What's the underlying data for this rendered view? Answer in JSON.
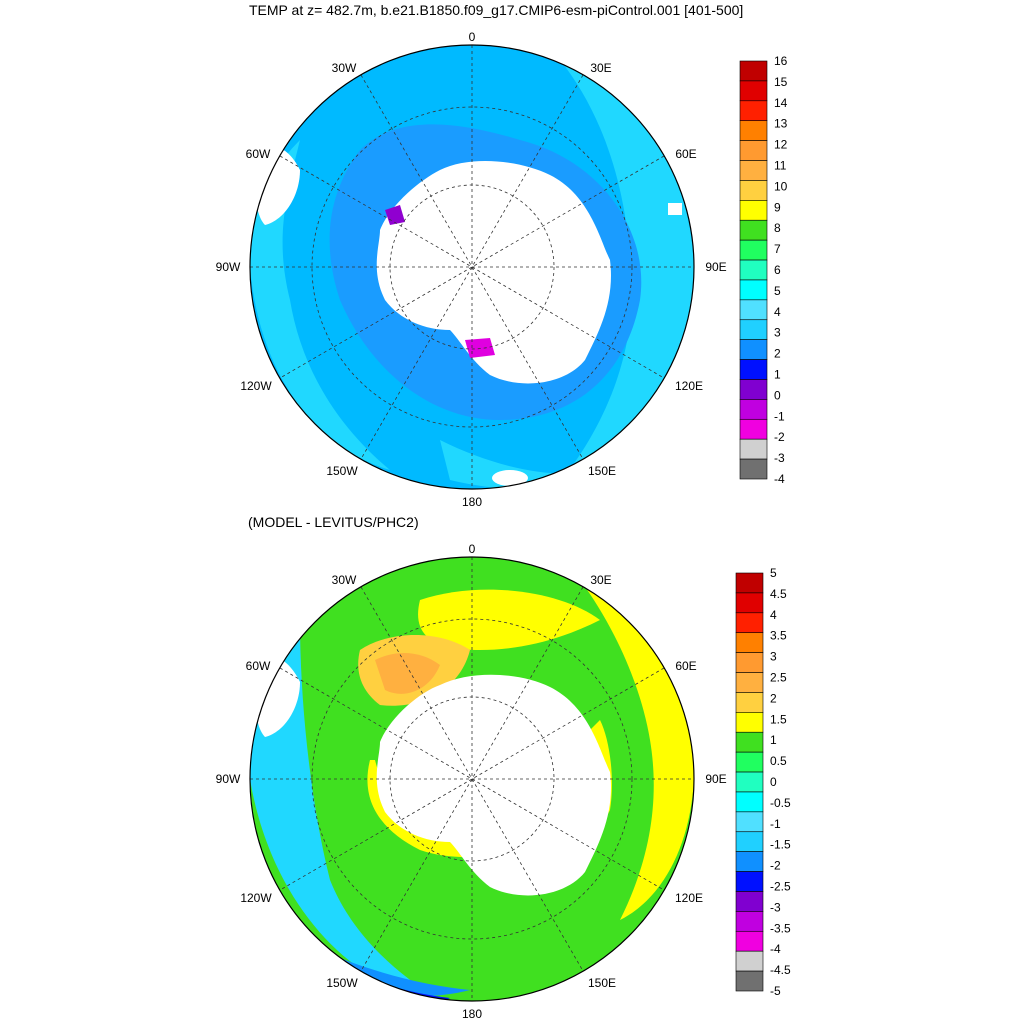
{
  "panel_top": {
    "title": "TEMP at z= 482.7m, b.e21.B1850.f09_g17.CMIP6-esm-piControl.001 [401-500]",
    "lon_labels": {
      "n": "0",
      "nne": "30E",
      "ene": "60E",
      "e": "90E",
      "ese": "120E",
      "sse": "150E",
      "s": "180",
      "ssw": "150W",
      "wsw": "120W",
      "w": "90W",
      "wnw": "60W",
      "nnw": "30W"
    },
    "colorbar": {
      "labels": [
        "16",
        "15",
        "14",
        "13",
        "12",
        "11",
        "10",
        "9",
        "8",
        "7",
        "6",
        "5",
        "4",
        "3",
        "2",
        "1",
        "0",
        "-1",
        "-2",
        "-3",
        "-4"
      ],
      "colors": [
        "#c00000",
        "#e00000",
        "#ff2000",
        "#ff8000",
        "#ff9a30",
        "#ffb040",
        "#ffd040",
        "#ffff00",
        "#40e020",
        "#20ff60",
        "#20ffc0",
        "#00ffff",
        "#50e0ff",
        "#20d0ff",
        "#1090ff",
        "#0010ff",
        "#8000d0",
        "#c000e0",
        "#f000e0",
        "#d0d0d0",
        "#707070"
      ]
    }
  },
  "panel_bottom": {
    "title": "(MODEL - LEVITUS/PHC2)",
    "lon_labels": {
      "n": "0",
      "nne": "30E",
      "ene": "60E",
      "e": "90E",
      "ese": "120E",
      "sse": "150E",
      "s": "180",
      "ssw": "150W",
      "wsw": "120W",
      "w": "90W",
      "wnw": "60W",
      "nnw": "30W"
    },
    "colorbar": {
      "labels": [
        "5",
        "4.5",
        "4",
        "3.5",
        "3",
        "2.5",
        "2",
        "1.5",
        "1",
        "0.5",
        "0",
        "-0.5",
        "-1",
        "-1.5",
        "-2",
        "-2.5",
        "-3",
        "-3.5",
        "-4",
        "-4.5",
        "-5"
      ],
      "colors": [
        "#c00000",
        "#e00000",
        "#ff2000",
        "#ff8000",
        "#ff9a30",
        "#ffb040",
        "#ffd040",
        "#ffff00",
        "#40e020",
        "#20ff60",
        "#20ffc0",
        "#00ffff",
        "#50e0ff",
        "#20d0ff",
        "#1090ff",
        "#0010ff",
        "#8000d0",
        "#c000e0",
        "#f000e0",
        "#d0d0d0",
        "#707070"
      ]
    }
  }
}
